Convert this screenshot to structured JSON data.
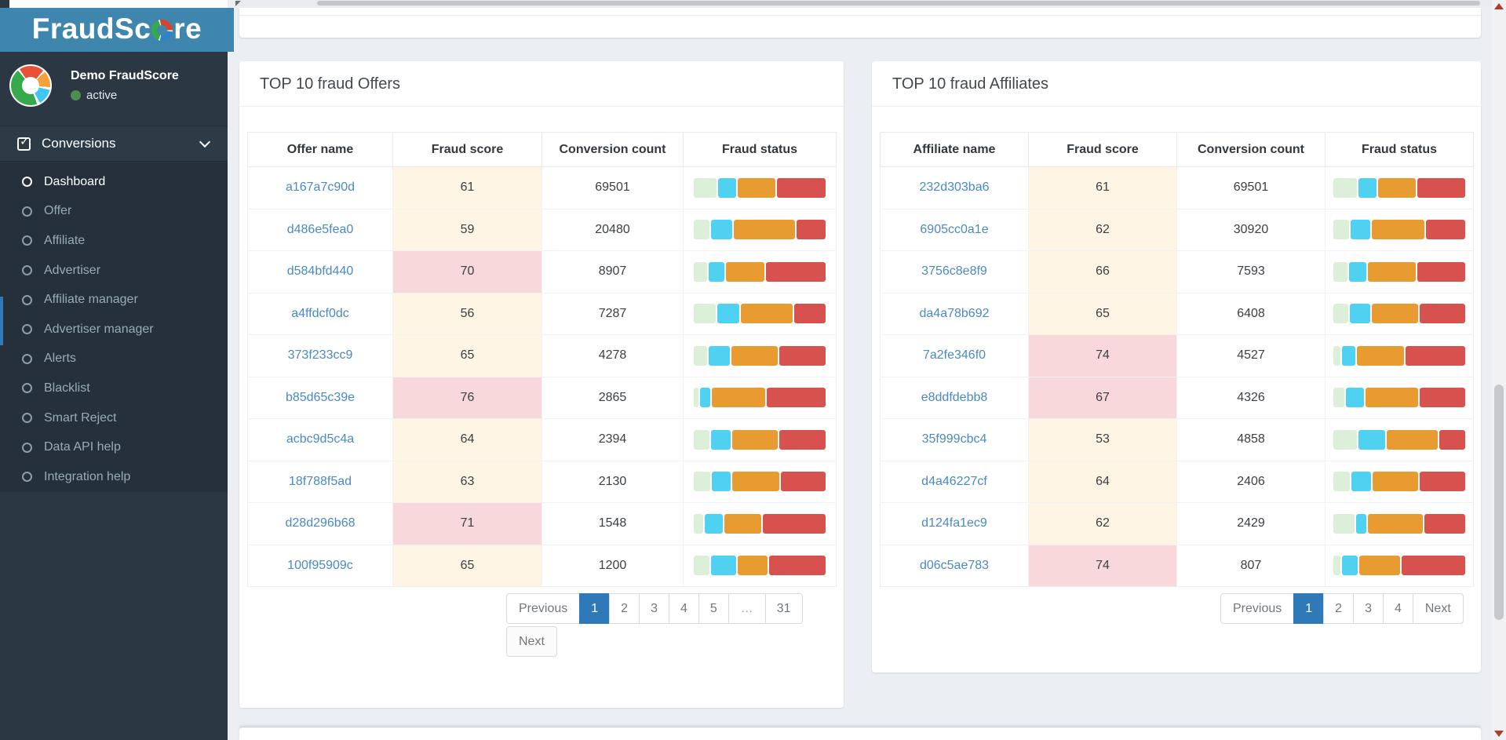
{
  "brand": {
    "name": "FraudScore",
    "name_prefix": "FraudSc",
    "name_suffix": "re"
  },
  "account": {
    "name": "Demo FraudScore",
    "status": "active"
  },
  "sidebar": {
    "section_label": "Conversions",
    "active_item": "Dashboard",
    "items": [
      "Dashboard",
      "Offer",
      "Affiliate",
      "Advertiser",
      "Affiliate manager",
      "Advertiser manager",
      "Alerts",
      "Blacklist",
      "Smart Reject",
      "Data API help",
      "Integration help"
    ]
  },
  "panels": [
    {
      "title": "TOP 10 fraud Offers",
      "columns": [
        "Offer name",
        "Fraud score",
        "Conversion count",
        "Fraud status"
      ],
      "rows": [
        {
          "name": "a167a7c90d",
          "score": "61",
          "severity": "warning",
          "count": "69501",
          "bar": [
            17.8,
            14.5,
            29.5,
            38.2
          ]
        },
        {
          "name": "d486e5fea0",
          "score": "59",
          "severity": "warning",
          "count": "20480",
          "bar": [
            12.3,
            16.6,
            48.1,
            23.0
          ]
        },
        {
          "name": "d584bfd440",
          "score": "70",
          "severity": "danger",
          "count": "8907",
          "bar": [
            10.5,
            12.3,
            30.3,
            46.9
          ]
        },
        {
          "name": "a4ffdcf0dc",
          "score": "56",
          "severity": "warning",
          "count": "7287",
          "bar": [
            17.4,
            17.2,
            40.6,
            24.8
          ]
        },
        {
          "name": "373f233cc9",
          "score": "65",
          "severity": "warning",
          "count": "4278",
          "bar": [
            10.5,
            16.6,
            36.6,
            36.3
          ]
        },
        {
          "name": "b85d65c39e",
          "score": "76",
          "severity": "danger",
          "count": "2865",
          "bar": [
            3.6,
            8.3,
            41.8,
            46.3
          ]
        },
        {
          "name": "acbc9d5c4a",
          "score": "64",
          "severity": "warning",
          "count": "2394",
          "bar": [
            12.5,
            15.4,
            35.8,
            36.3
          ]
        },
        {
          "name": "18f788f5ad",
          "score": "63",
          "severity": "warning",
          "count": "2130",
          "bar": [
            12.7,
            15.2,
            36.8,
            35.3
          ]
        },
        {
          "name": "d28d296b68",
          "score": "71",
          "severity": "danger",
          "count": "1548",
          "bar": [
            7.3,
            14.1,
            29.1,
            49.5
          ]
        },
        {
          "name": "100f95909c",
          "score": "65",
          "severity": "warning",
          "count": "1200",
          "bar": [
            12.1,
            20.2,
            23.2,
            44.5
          ]
        }
      ],
      "pagination": {
        "active": "1",
        "rows": [
          [
            "Previous",
            "1",
            "2",
            "3",
            "4",
            "5",
            "…",
            "31"
          ],
          [
            "Next"
          ]
        ]
      }
    },
    {
      "title": "TOP 10 fraud Affiliates",
      "columns": [
        "Affiliate name",
        "Fraud score",
        "Conversion count",
        "Fraud status"
      ],
      "rows": [
        {
          "name": "232d303ba6",
          "score": "61",
          "severity": "warning",
          "count": "69501",
          "bar": [
            18.7,
            14.2,
            29.2,
            37.9
          ]
        },
        {
          "name": "6905cc0a1e",
          "score": "62",
          "severity": "warning",
          "count": "30920",
          "bar": [
            12.4,
            15.2,
            41.8,
            30.6
          ]
        },
        {
          "name": "3756c8e8f9",
          "score": "66",
          "severity": "warning",
          "count": "7593",
          "bar": [
            10.8,
            13.8,
            37.5,
            37.9
          ]
        },
        {
          "name": "da4a78b692",
          "score": "65",
          "severity": "warning",
          "count": "6408",
          "bar": [
            11.8,
            15.8,
            36.5,
            35.9
          ]
        },
        {
          "name": "7a2fe346f0",
          "score": "74",
          "severity": "danger",
          "count": "4527",
          "bar": [
            5.3,
            10.9,
            37.1,
            46.7
          ]
        },
        {
          "name": "e8ddfdebb8",
          "score": "67",
          "severity": "danger",
          "count": "4326",
          "bar": [
            8.5,
            14.6,
            41.0,
            35.9
          ]
        },
        {
          "name": "35f999cbc4",
          "score": "53",
          "severity": "warning",
          "count": "4858",
          "bar": [
            18.7,
            20.7,
            40.5,
            20.1
          ]
        },
        {
          "name": "d4a46227cf",
          "score": "64",
          "severity": "warning",
          "count": "2406",
          "bar": [
            12.8,
            15.8,
            35.5,
            35.9
          ]
        },
        {
          "name": "d124fa1ec9",
          "score": "62",
          "severity": "warning",
          "count": "2429",
          "bar": [
            16.4,
            8.3,
            43.0,
            32.3
          ]
        },
        {
          "name": "d06c5ae783",
          "score": "74",
          "severity": "danger",
          "count": "807",
          "bar": [
            5.5,
            12.6,
            32.2,
            49.7
          ]
        }
      ],
      "pagination": {
        "active": "1",
        "rows": [
          [
            "Previous",
            "1",
            "2",
            "3",
            "4",
            "Next"
          ]
        ]
      }
    }
  ],
  "colors": {
    "header_blue": "#3f86ae",
    "page_bg": "#ebeef3",
    "link": "#4a89c4",
    "active_page": "#2f79b9",
    "score_warning": "#fdf4e3",
    "score_danger": "#f8d8da",
    "bar_ok": "#dcefd8",
    "bar_low": "#4fd2f2",
    "bar_medium": "#e89b31",
    "bar_high": "#d7524e",
    "status_dot": "#4d8d4f"
  },
  "bar_segment_names": [
    "ok",
    "low-risk",
    "medium-risk",
    "high-risk"
  ]
}
